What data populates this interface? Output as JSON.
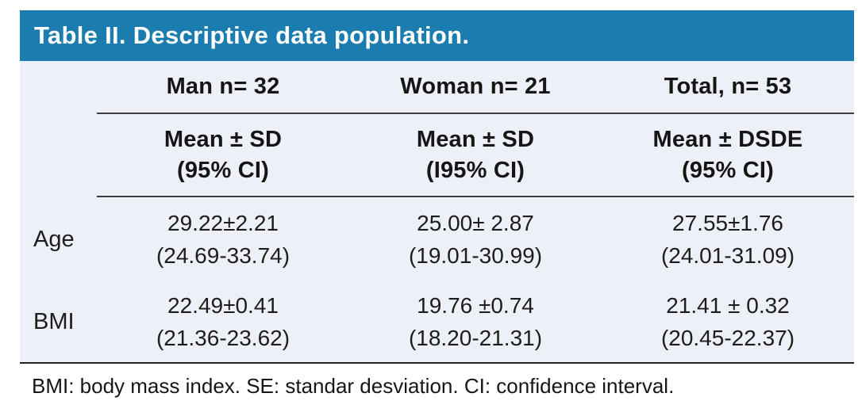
{
  "figure": {
    "title": "Table II. Descriptive data population.",
    "footnote": "BMI: body mass index. SE: standar desviation. CI: confidence interval."
  },
  "table": {
    "col_headers": [
      "Man n= 32",
      "Woman n= 21",
      "Total, n= 53"
    ],
    "stat_headers": [
      {
        "line1": "Mean ± SD",
        "line2": "(95% CI)"
      },
      {
        "line1": "Mean ± SD",
        "line2": "(I95% CI)"
      },
      {
        "line1": "Mean ± DSDE",
        "line2": "(95% CI)"
      }
    ],
    "rows": [
      {
        "label": "Age",
        "cells": [
          {
            "mean": "29.22±2.21",
            "ci": "(24.69-33.74)"
          },
          {
            "mean": "25.00± 2.87",
            "ci": "(19.01-30.99)"
          },
          {
            "mean": "27.55±1.76",
            "ci": "(24.01-31.09)"
          }
        ]
      },
      {
        "label": "BMI",
        "cells": [
          {
            "mean": "22.49±0.41",
            "ci": "(21.36-23.62)"
          },
          {
            "mean": "19.76 ±0.74",
            "ci": "(18.20-21.31)"
          },
          {
            "mean": "21.41 ± 0.32",
            "ci": "(20.45-22.37)"
          }
        ]
      }
    ]
  },
  "colors": {
    "title_bar_bg": "#1b7cb0",
    "title_text": "#ffffff",
    "table_body_bg": "#edf0f7",
    "text": "#1d1d1d",
    "rule": "#3f3f3f"
  },
  "chart_data": {
    "type": "table",
    "title": "Table II. Descriptive data population.",
    "columns": [
      "",
      "Man n= 32",
      "Woman n= 21",
      "Total, n= 53"
    ],
    "subheaders": [
      "",
      "Mean ± SD (95% CI)",
      "Mean ± SD (I95% CI)",
      "Mean ± DSDE (95% CI)"
    ],
    "rows": [
      [
        "Age",
        "29.22±2.21 (24.69-33.74)",
        "25.00± 2.87 (19.01-30.99)",
        "27.55±1.76 (24.01-31.09)"
      ],
      [
        "BMI",
        "22.49±0.41 (21.36-23.62)",
        "19.76 ±0.74 (18.20-21.31)",
        "21.41 ± 0.32 (20.45-22.37)"
      ]
    ],
    "footnote": "BMI: body mass index. SE: standar desviation. CI: confidence interval."
  }
}
